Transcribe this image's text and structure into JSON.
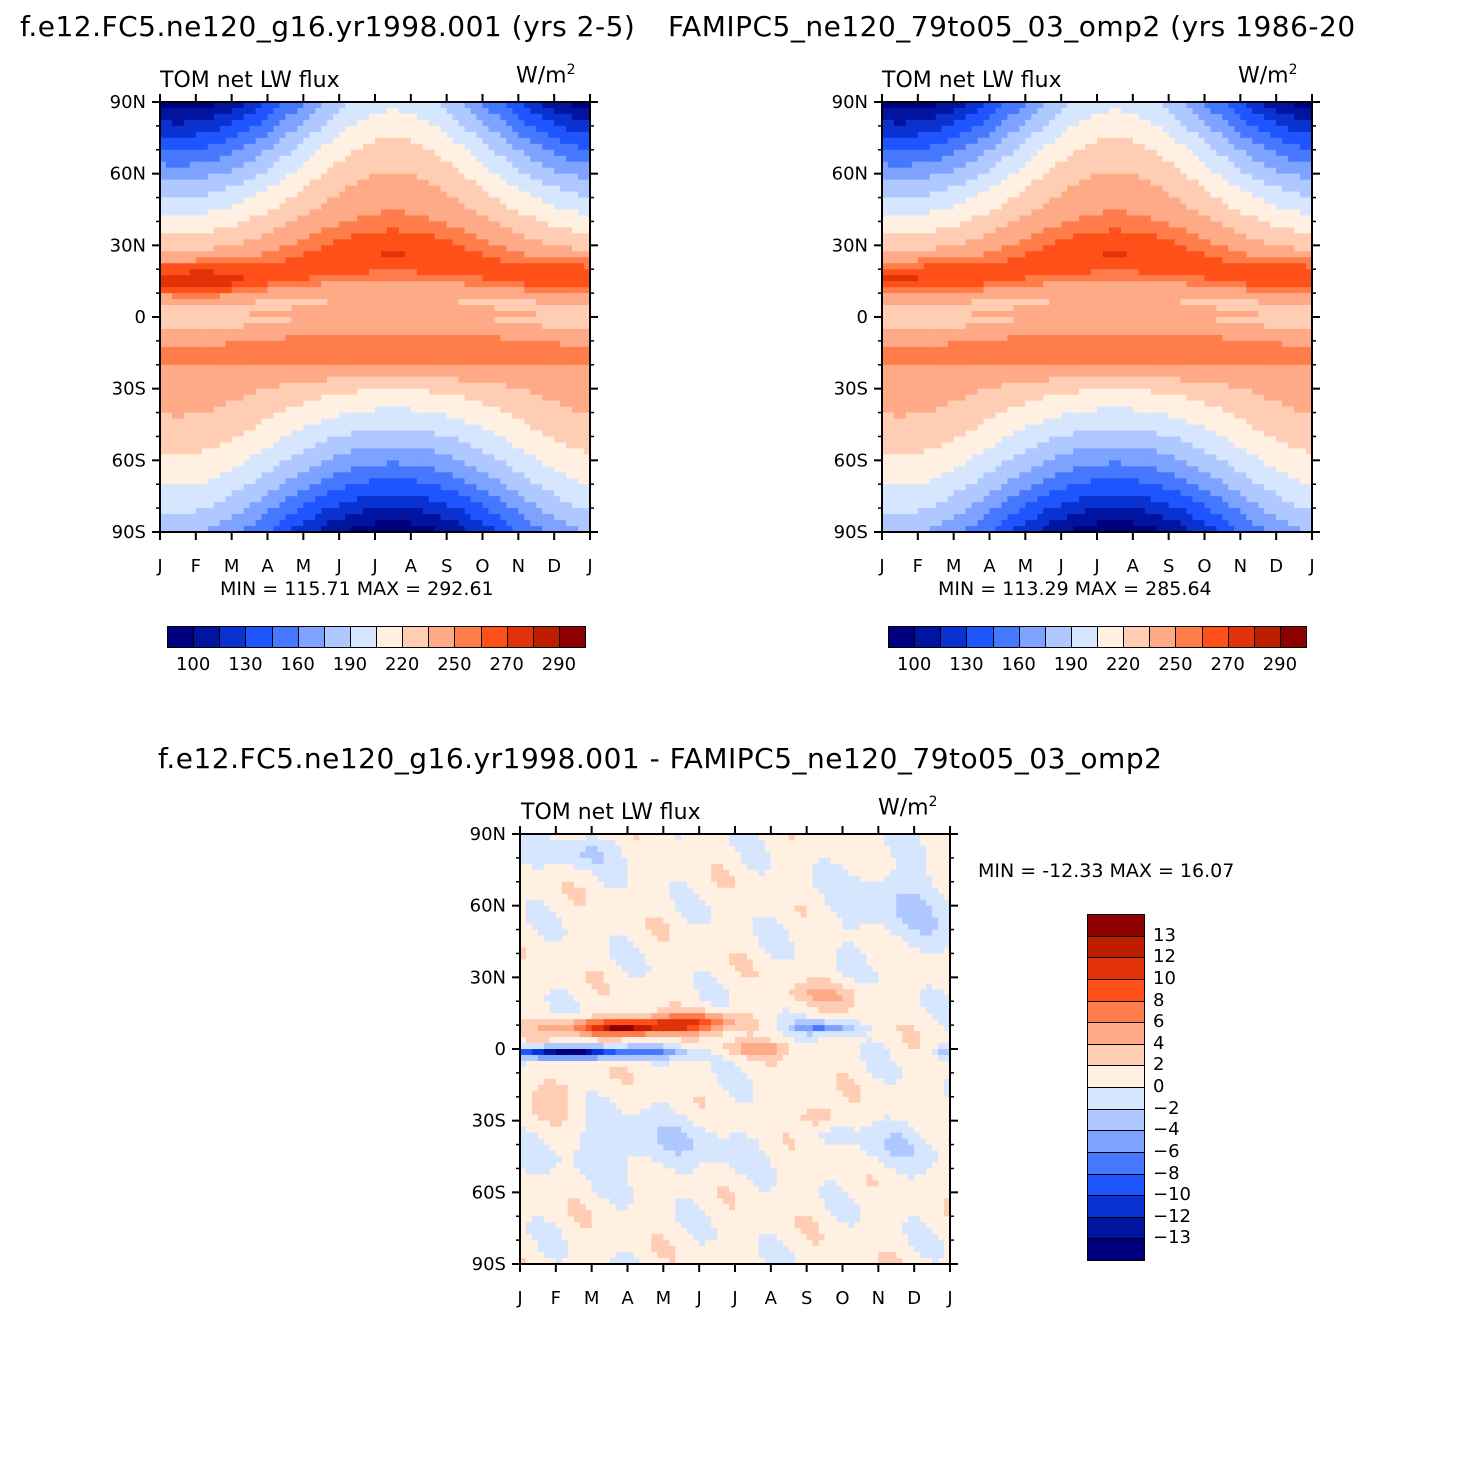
{
  "panels": {
    "top_left": {
      "title": "f.e12.FC5.ne120_g16.yr1998.001 (yrs 2-5)",
      "subtitle_left": "TOM net LW flux",
      "subtitle_right": "W/m",
      "units_exp": "2",
      "minmax": "MIN = 115.71 MAX = 292.61",
      "month_labels": [
        "J",
        "F",
        "M",
        "A",
        "M",
        "J",
        "J",
        "A",
        "S",
        "O",
        "N",
        "D",
        "J"
      ],
      "lat_labels": [
        "90N",
        "60N",
        "30N",
        "0",
        "30S",
        "60S",
        "90S"
      ],
      "colorbar_labels": [
        "100",
        "130",
        "160",
        "190",
        "220",
        "250",
        "270",
        "290"
      ]
    },
    "top_right": {
      "title": "FAMIPC5_ne120_79to05_03_omp2 (yrs 1986-20",
      "subtitle_left": "TOM net LW flux",
      "subtitle_right": "W/m",
      "units_exp": "2",
      "minmax": "MIN = 113.29 MAX = 285.64",
      "month_labels": [
        "J",
        "F",
        "M",
        "A",
        "M",
        "J",
        "J",
        "A",
        "S",
        "O",
        "N",
        "D",
        "J"
      ],
      "lat_labels": [
        "90N",
        "60N",
        "30N",
        "0",
        "30S",
        "60S",
        "90S"
      ],
      "colorbar_labels": [
        "100",
        "130",
        "160",
        "190",
        "220",
        "250",
        "270",
        "290"
      ]
    },
    "bottom": {
      "title": "f.e12.FC5.ne120_g16.yr1998.001 - FAMIPC5_ne120_79to05_03_omp2",
      "subtitle_left": "TOM net LW flux",
      "subtitle_right": "W/m",
      "units_exp": "2",
      "minmax": "MIN = -12.33 MAX =   16.07",
      "month_labels": [
        "J",
        "F",
        "M",
        "A",
        "M",
        "J",
        "J",
        "A",
        "S",
        "O",
        "N",
        "D",
        "J"
      ],
      "lat_labels": [
        "90N",
        "60N",
        "30N",
        "0",
        "30S",
        "60S",
        "90S"
      ],
      "colorbar_labels": [
        "13",
        "12",
        "10",
        "8",
        "6",
        "4",
        "2",
        "0",
        "-2",
        "-4",
        "-6",
        "-8",
        "-10",
        "-12",
        "-13"
      ]
    }
  },
  "colors": {
    "abs_palette": [
      "#00007f",
      "#0014a0",
      "#0a32d0",
      "#1e55ff",
      "#4678ff",
      "#7da2ff",
      "#afc8ff",
      "#d7e6ff",
      "#fff0e1",
      "#ffcdb4",
      "#ffaa87",
      "#ff7d4b",
      "#ff5019",
      "#e1320a",
      "#be1e00",
      "#8c0000"
    ],
    "diff_palette": [
      "#8c0000",
      "#be1e00",
      "#e1320a",
      "#ff5019",
      "#ff7d4b",
      "#ffaa87",
      "#ffcdb4",
      "#fff0e1",
      "#d7e6ff",
      "#afc8ff",
      "#7da2ff",
      "#4678ff",
      "#1e55ff",
      "#0a32d0",
      "#0014a0",
      "#00007f"
    ]
  },
  "chart_data": [
    {
      "type": "heatmap",
      "title": "f.e12.FC5.ne120_g16.yr1998.001 (yrs 2-5)",
      "variable": "TOM net LW flux",
      "units": "W/m2",
      "x_axis": "month (Jan-Jan)",
      "y_axis": "latitude (90S-90N)",
      "min": 115.71,
      "max": 292.61,
      "contour_levels": [
        100,
        115,
        130,
        145,
        160,
        175,
        190,
        205,
        220,
        235,
        250,
        260,
        270,
        280,
        290
      ],
      "approx_zonal_annual_values": {
        "lat": [
          90,
          60,
          30,
          15,
          0,
          -15,
          -30,
          -60,
          -90
        ],
        "value": [
          150,
          200,
          265,
          280,
          245,
          280,
          265,
          215,
          140
        ]
      }
    },
    {
      "type": "heatmap",
      "title": "FAMIPC5_ne120_79to05_03_omp2 (yrs 1986-20",
      "variable": "TOM net LW flux",
      "units": "W/m2",
      "x_axis": "month (Jan-Jan)",
      "y_axis": "latitude (90S-90N)",
      "min": 113.29,
      "max": 285.64,
      "contour_levels": [
        100,
        115,
        130,
        145,
        160,
        175,
        190,
        205,
        220,
        235,
        250,
        260,
        270,
        280,
        290
      ],
      "approx_zonal_annual_values": {
        "lat": [
          90,
          60,
          30,
          15,
          0,
          -15,
          -30,
          -60,
          -90
        ],
        "value": [
          150,
          200,
          265,
          275,
          245,
          278,
          265,
          215,
          138
        ]
      }
    },
    {
      "type": "heatmap",
      "title": "f.e12.FC5.ne120_g16.yr1998.001 - FAMIPC5_ne120_79to05_03_omp2",
      "variable": "TOM net LW flux",
      "units": "W/m2",
      "x_axis": "month (Jan-Jan)",
      "y_axis": "latitude (90S-90N)",
      "min": -12.33,
      "max": 16.07,
      "contour_levels": [
        -13,
        -12,
        -10,
        -8,
        -6,
        -4,
        -2,
        0,
        2,
        4,
        6,
        8,
        10,
        12,
        13
      ]
    }
  ]
}
